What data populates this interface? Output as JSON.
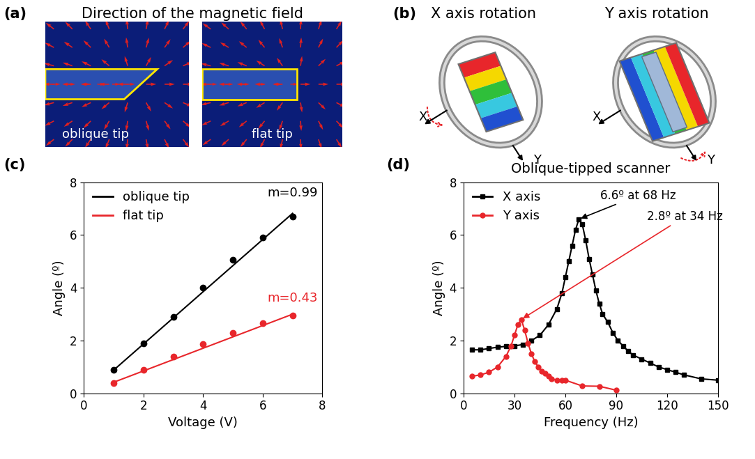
{
  "panels": [
    {
      "label": "(a)",
      "title": "Direction of the magnetic field",
      "images": [
        {
          "label": "oblique tip"
        },
        {
          "label": "flat tip"
        }
      ]
    },
    {
      "label": "(b)",
      "views": [
        {
          "title": "X axis rotation",
          "axes": [
            "X",
            "Y"
          ]
        },
        {
          "title": "Y axis rotation",
          "axes": [
            "X",
            "Y"
          ]
        }
      ]
    }
  ],
  "chart_data": [
    {
      "panel": "(c)",
      "type": "scatter",
      "x_label": "Voltage (V)",
      "y_label": "Angle (º)",
      "xlim": [
        0,
        8
      ],
      "xticks": [
        0,
        2,
        4,
        6,
        8
      ],
      "ylim": [
        0,
        8
      ],
      "yticks": [
        0,
        2,
        4,
        6,
        8
      ],
      "legend": "upper left",
      "series": [
        {
          "name": "oblique tip",
          "color": "#000000",
          "type": "scatter",
          "marker": "circle",
          "x": [
            1,
            2,
            3,
            4,
            5,
            6,
            7
          ],
          "values": [
            0.9,
            1.9,
            2.9,
            4.0,
            5.05,
            5.9,
            6.7
          ]
        },
        {
          "name": "flat tip",
          "color": "#e8262b",
          "type": "scatter",
          "marker": "circle",
          "x": [
            1,
            2,
            3,
            4,
            5,
            6,
            7
          ],
          "values": [
            0.4,
            0.88,
            1.4,
            1.88,
            2.3,
            2.65,
            2.95
          ]
        },
        {
          "color": "#000000",
          "type": "line",
          "x": [
            1,
            7
          ],
          "values": [
            0.88,
            6.82
          ]
        },
        {
          "color": "#e8262b",
          "type": "line",
          "x": [
            1,
            7
          ],
          "values": [
            0.42,
            3.0
          ]
        }
      ],
      "annotations": [
        {
          "text": "m=0.99",
          "x": 7,
          "y": 7.6,
          "color": "#000000"
        },
        {
          "text": "m=0.43",
          "x": 7,
          "y": 3.6,
          "color": "#e8262b"
        }
      ]
    },
    {
      "panel": "(d)",
      "type": "line",
      "title": "Oblique-tipped scanner",
      "x_label": "Frequency (Hz)",
      "y_label": "Angle (º)",
      "xlim": [
        0,
        150
      ],
      "xticks": [
        0,
        30,
        60,
        90,
        120,
        150
      ],
      "ylim": [
        0,
        8
      ],
      "yticks": [
        0,
        2,
        4,
        6,
        8
      ],
      "legend": "upper left",
      "series": [
        {
          "name": "X axis",
          "color": "#000000",
          "type": "line",
          "marker": "square",
          "x": [
            5,
            10,
            15,
            20,
            25,
            30,
            35,
            40,
            45,
            50,
            55,
            58,
            60,
            62,
            64,
            66,
            68,
            70,
            72,
            74,
            76,
            78,
            80,
            82,
            85,
            88,
            91,
            94,
            97,
            100,
            105,
            110,
            115,
            120,
            125,
            130,
            140,
            150
          ],
          "values": [
            1.65,
            1.65,
            1.7,
            1.75,
            1.78,
            1.8,
            1.85,
            2.0,
            2.2,
            2.6,
            3.2,
            3.8,
            4.4,
            5.0,
            5.6,
            6.2,
            6.6,
            6.4,
            5.8,
            5.1,
            4.5,
            3.9,
            3.4,
            3.0,
            2.7,
            2.3,
            2.0,
            1.8,
            1.6,
            1.45,
            1.3,
            1.15,
            1.0,
            0.9,
            0.8,
            0.7,
            0.55,
            0.5
          ]
        },
        {
          "name": "Y axis",
          "color": "#e8262b",
          "type": "line",
          "marker": "circle",
          "x": [
            5,
            10,
            15,
            20,
            25,
            28,
            30,
            32,
            34,
            36,
            38,
            40,
            42,
            44,
            46,
            48,
            50,
            52,
            55,
            58,
            60,
            70,
            80,
            90
          ],
          "values": [
            0.65,
            0.7,
            0.8,
            1.0,
            1.4,
            1.8,
            2.2,
            2.6,
            2.8,
            2.4,
            1.9,
            1.5,
            1.2,
            1.0,
            0.85,
            0.75,
            0.65,
            0.55,
            0.5,
            0.5,
            0.5,
            0.28,
            0.27,
            0.12
          ]
        }
      ],
      "annotations": [
        {
          "type": "arrow",
          "text": "6.6º at 68 Hz",
          "x": 68,
          "y": 6.6,
          "color": "#000000"
        },
        {
          "type": "arrow",
          "text": "2.8º at 34 Hz",
          "x": 34,
          "y": 2.8,
          "color": "#e8262b"
        }
      ]
    }
  ]
}
